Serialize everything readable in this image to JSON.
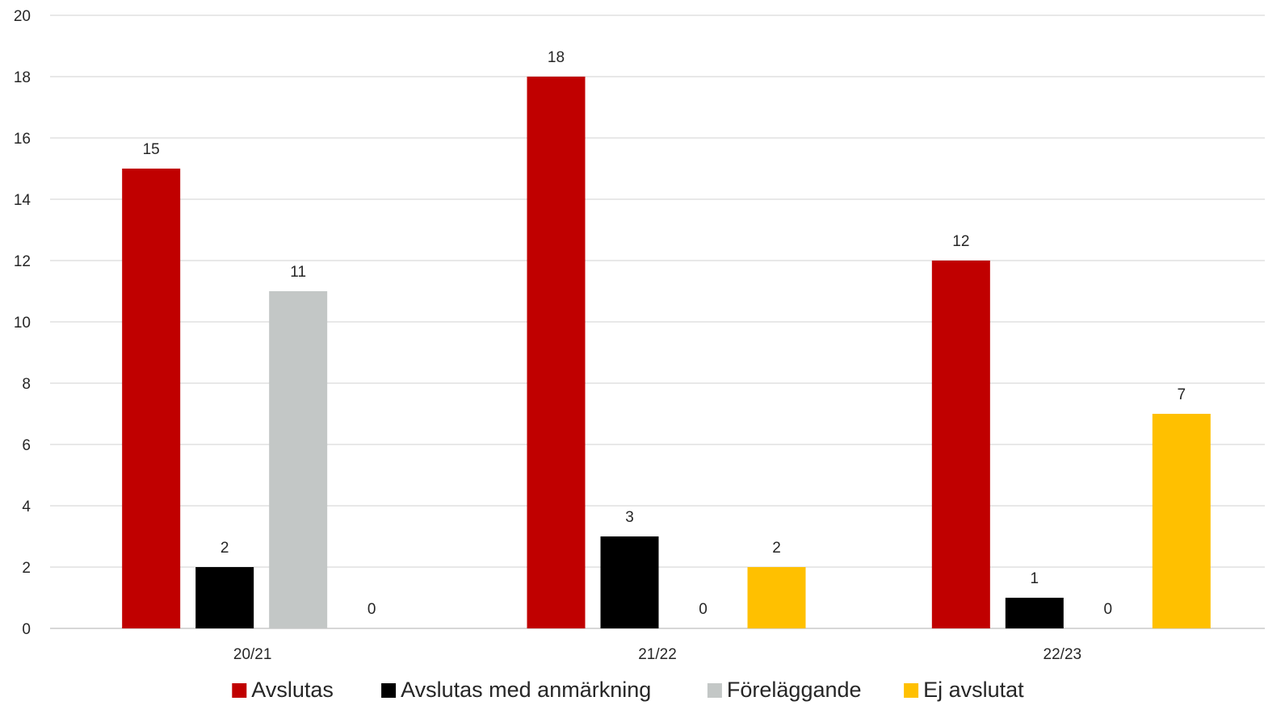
{
  "chart_data": {
    "type": "bar",
    "title": "",
    "xlabel": "",
    "ylabel": "",
    "categories": [
      "20/21",
      "21/22",
      "22/23"
    ],
    "series": [
      {
        "name": "Avslutas",
        "color": "#C00000",
        "values": [
          15,
          18,
          12
        ]
      },
      {
        "name": "Avslutas med anmärkning",
        "color": "#000000",
        "values": [
          2,
          3,
          1
        ]
      },
      {
        "name": "Föreläggande",
        "color": "#C3C7C6",
        "values": [
          11,
          0,
          0
        ]
      },
      {
        "name": "Ej avslutat",
        "color": "#FFC000",
        "values": [
          0,
          2,
          7
        ]
      }
    ],
    "data_labels": [
      [
        "15",
        "18",
        "12"
      ],
      [
        "2",
        "3",
        "1"
      ],
      [
        "11",
        "0",
        "0"
      ],
      [
        "0",
        "2",
        "7"
      ]
    ],
    "ylim": [
      0,
      20
    ],
    "yticks": [
      0,
      2,
      4,
      6,
      8,
      10,
      12,
      14,
      16,
      18,
      20
    ],
    "grid": true,
    "legend_position": "bottom"
  }
}
